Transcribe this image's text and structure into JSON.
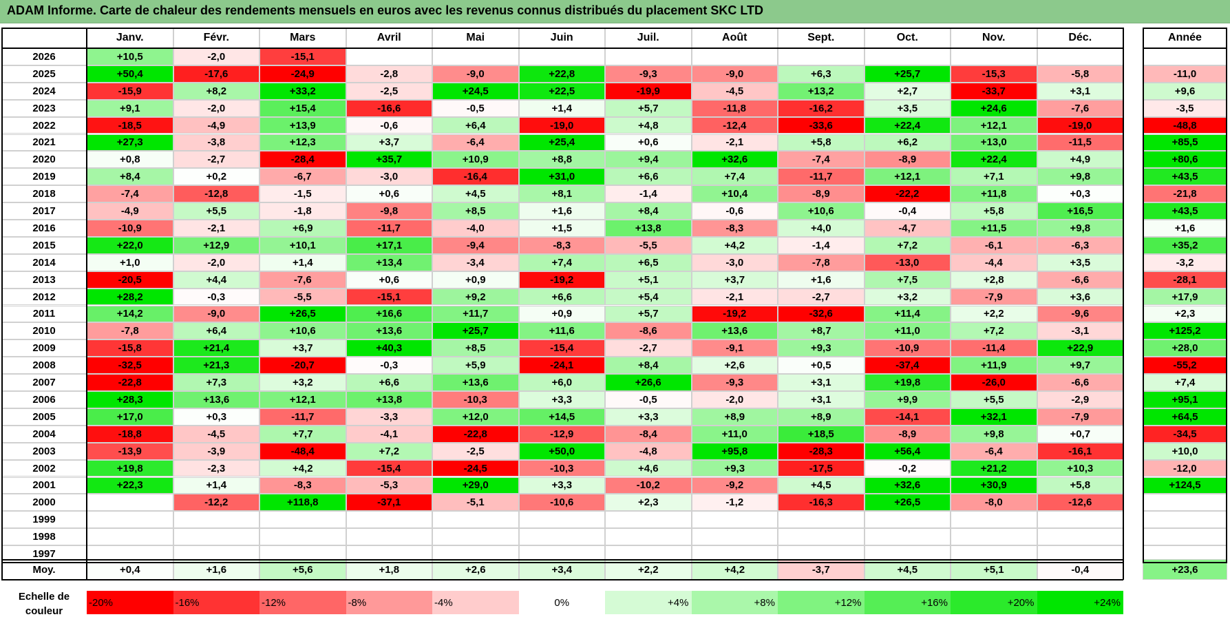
{
  "title": "ADAM Informe. Carte de chaleur des rendements mensuels en euros avec les revenus connus distribués du placement SKC LTD",
  "chart_data": {
    "type": "heatmap",
    "title": "ADAM Informe. Carte de chaleur des rendements mensuels en euros avec les revenus connus distribués du placement SKC LTD",
    "months": [
      "Janv.",
      "Févr.",
      "Mars",
      "Avril",
      "Mai",
      "Juin",
      "Juil.",
      "Août",
      "Sept.",
      "Oct.",
      "Nov.",
      "Déc."
    ],
    "annual_label": "Année",
    "rows": [
      {
        "year": "2026",
        "values": [
          "+10,5",
          "-2,0",
          "-15,1",
          "",
          "",
          "",
          "",
          "",
          "",
          "",
          "",
          ""
        ],
        "annual": ""
      },
      {
        "year": "2025",
        "values": [
          "+50,4",
          "-17,6",
          "-24,9",
          "-2,8",
          "-9,0",
          "+22,8",
          "-9,3",
          "-9,0",
          "+6,3",
          "+25,7",
          "-15,3",
          "-5,8"
        ],
        "annual": "-11,0"
      },
      {
        "year": "2024",
        "values": [
          "-15,9",
          "+8,2",
          "+33,2",
          "-2,5",
          "+24,5",
          "+22,5",
          "-19,9",
          "-4,5",
          "+13,2",
          "+2,7",
          "-33,7",
          "+3,1"
        ],
        "annual": "+9,6"
      },
      {
        "year": "2023",
        "values": [
          "+9,1",
          "-2,0",
          "+15,4",
          "-16,6",
          "-0,5",
          "+1,4",
          "+5,7",
          "-11,8",
          "-16,2",
          "+3,5",
          "+24,6",
          "-7,6"
        ],
        "annual": "-3,5"
      },
      {
        "year": "2022",
        "values": [
          "-18,5",
          "-4,9",
          "+13,9",
          "-0,6",
          "+6,4",
          "-19,0",
          "+4,8",
          "-12,4",
          "-33,6",
          "+22,4",
          "+12,1",
          "-19,0"
        ],
        "annual": "-48,8"
      },
      {
        "year": "2021",
        "values": [
          "+27,3",
          "-3,8",
          "+12,3",
          "+3,7",
          "-6,4",
          "+25,4",
          "+0,6",
          "-2,1",
          "+5,8",
          "+6,2",
          "+13,0",
          "-11,5"
        ],
        "annual": "+85,5"
      },
      {
        "year": "2020",
        "values": [
          "+0,8",
          "-2,7",
          "-28,4",
          "+35,7",
          "+10,9",
          "+8,8",
          "+9,4",
          "+32,6",
          "-7,4",
          "-8,9",
          "+22,4",
          "+4,9"
        ],
        "annual": "+80,6"
      },
      {
        "year": "2019",
        "values": [
          "+8,4",
          "+0,2",
          "-6,7",
          "-3,0",
          "-16,4",
          "+31,0",
          "+6,6",
          "+7,4",
          "-11,7",
          "+12,1",
          "+7,1",
          "+9,8"
        ],
        "annual": "+43,5"
      },
      {
        "year": "2018",
        "values": [
          "-7,4",
          "-12,8",
          "-1,5",
          "+0,6",
          "+4,5",
          "+8,1",
          "-1,4",
          "+10,4",
          "-8,9",
          "-22,2",
          "+11,8",
          "+0,3"
        ],
        "annual": "-21,8"
      },
      {
        "year": "2017",
        "values": [
          "-4,9",
          "+5,5",
          "-1,8",
          "-9,8",
          "+8,5",
          "+1,6",
          "+8,4",
          "-0,6",
          "+10,6",
          "-0,4",
          "+5,8",
          "+16,5"
        ],
        "annual": "+43,5"
      },
      {
        "year": "2016",
        "values": [
          "-10,9",
          "-2,1",
          "+6,9",
          "-11,7",
          "-4,0",
          "+1,5",
          "+13,8",
          "-8,3",
          "+4,0",
          "-4,7",
          "+11,5",
          "+9,8"
        ],
        "annual": "+1,6"
      },
      {
        "year": "2015",
        "values": [
          "+22,0",
          "+12,9",
          "+10,1",
          "+17,1",
          "-9,4",
          "-8,3",
          "-5,5",
          "+4,2",
          "-1,4",
          "+7,2",
          "-6,1",
          "-6,3"
        ],
        "annual": "+35,2"
      },
      {
        "year": "2014",
        "values": [
          "+1,0",
          "-2,0",
          "+1,4",
          "+13,4",
          "-3,4",
          "+7,4",
          "+6,5",
          "-3,0",
          "-7,8",
          "-13,0",
          "-4,4",
          "+3,5"
        ],
        "annual": "-3,2"
      },
      {
        "year": "2013",
        "values": [
          "-20,5",
          "+4,4",
          "-7,6",
          "+0,6",
          "+0,9",
          "-19,2",
          "+5,1",
          "+3,7",
          "+1,6",
          "+7,5",
          "+2,8",
          "-6,6"
        ],
        "annual": "-28,1"
      },
      {
        "year": "2012",
        "values": [
          "+28,2",
          "-0,3",
          "-5,5",
          "-15,1",
          "+9,2",
          "+6,6",
          "+5,4",
          "-2,1",
          "-2,7",
          "+3,2",
          "-7,9",
          "+3,6"
        ],
        "annual": "+17,9"
      },
      {
        "year": "2011",
        "values": [
          "+14,2",
          "-9,0",
          "+26,5",
          "+16,6",
          "+11,7",
          "+0,9",
          "+5,7",
          "-19,2",
          "-32,6",
          "+11,4",
          "+2,2",
          "-9,6"
        ],
        "annual": "+2,3"
      },
      {
        "year": "2010",
        "values": [
          "-7,8",
          "+6,4",
          "+10,6",
          "+13,6",
          "+25,7",
          "+11,6",
          "-8,6",
          "+13,6",
          "+8,7",
          "+11,0",
          "+7,2",
          "-3,1"
        ],
        "annual": "+125,2"
      },
      {
        "year": "2009",
        "values": [
          "-15,8",
          "+21,4",
          "+3,7",
          "+40,3",
          "+8,5",
          "-15,4",
          "-2,7",
          "-9,1",
          "+9,3",
          "-10,9",
          "-11,4",
          "+22,9"
        ],
        "annual": "+28,0"
      },
      {
        "year": "2008",
        "values": [
          "-32,5",
          "+21,3",
          "-20,7",
          "-0,3",
          "+5,9",
          "-24,1",
          "+8,4",
          "+2,6",
          "+0,5",
          "-37,4",
          "+11,9",
          "+9,7"
        ],
        "annual": "-55,2"
      },
      {
        "year": "2007",
        "values": [
          "-22,8",
          "+7,3",
          "+3,2",
          "+6,6",
          "+13,6",
          "+6,0",
          "+26,6",
          "-9,3",
          "+3,1",
          "+19,8",
          "-26,0",
          "-6,6"
        ],
        "annual": "+7,4"
      },
      {
        "year": "2006",
        "values": [
          "+28,3",
          "+13,6",
          "+12,1",
          "+13,8",
          "-10,3",
          "+3,3",
          "-0,5",
          "-2,0",
          "+3,1",
          "+9,9",
          "+5,5",
          "-2,9"
        ],
        "annual": "+95,1"
      },
      {
        "year": "2005",
        "values": [
          "+17,0",
          "+0,3",
          "-11,7",
          "-3,3",
          "+12,0",
          "+14,5",
          "+3,3",
          "+8,9",
          "+8,9",
          "-14,1",
          "+32,1",
          "-7,9"
        ],
        "annual": "+64,5"
      },
      {
        "year": "2004",
        "values": [
          "-18,8",
          "-4,5",
          "+7,7",
          "-4,1",
          "-22,8",
          "-12,9",
          "-8,4",
          "+11,0",
          "+18,5",
          "-8,9",
          "+9,8",
          "+0,7"
        ],
        "annual": "-34,5"
      },
      {
        "year": "2003",
        "values": [
          "-13,9",
          "-3,9",
          "-48,4",
          "+7,2",
          "-2,5",
          "+50,0",
          "-4,8",
          "+95,8",
          "-28,3",
          "+56,4",
          "-6,4",
          "-16,1"
        ],
        "annual": "+10,0"
      },
      {
        "year": "2002",
        "values": [
          "+19,8",
          "-2,3",
          "+4,2",
          "-15,4",
          "-24,5",
          "-10,3",
          "+4,6",
          "+9,3",
          "-17,5",
          "-0,2",
          "+21,2",
          "+10,3"
        ],
        "annual": "-12,0"
      },
      {
        "year": "2001",
        "values": [
          "+22,3",
          "+1,4",
          "-8,3",
          "-5,3",
          "+29,0",
          "+3,3",
          "-10,2",
          "-9,2",
          "+4,5",
          "+32,6",
          "+30,9",
          "+5,8"
        ],
        "annual": "+124,5"
      },
      {
        "year": "2000",
        "values": [
          "",
          "-12,2",
          "+118,8",
          "-37,1",
          "-5,1",
          "-10,6",
          "+2,3",
          "-1,2",
          "-16,3",
          "+26,5",
          "-8,0",
          "-12,6"
        ],
        "annual": ""
      },
      {
        "year": "1999",
        "values": [
          "",
          "",
          "",
          "",
          "",
          "",
          "",
          "",
          "",
          "",
          "",
          ""
        ],
        "annual": ""
      },
      {
        "year": "1998",
        "values": [
          "",
          "",
          "",
          "",
          "",
          "",
          "",
          "",
          "",
          "",
          "",
          ""
        ],
        "annual": ""
      },
      {
        "year": "1997",
        "values": [
          "",
          "",
          "",
          "",
          "",
          "",
          "",
          "",
          "",
          "",
          "",
          ""
        ],
        "annual": ""
      }
    ],
    "average": {
      "label": "Moy.",
      "values": [
        "+0,4",
        "+1,6",
        "+5,6",
        "+1,8",
        "+2,6",
        "+3,4",
        "+2,2",
        "+4,2",
        "-3,7",
        "+4,5",
        "+5,1",
        "-0,4"
      ],
      "annual": "+23,6"
    },
    "scale": {
      "label_line1": "Echelle de",
      "label_line2": "couleur",
      "steps": [
        "-20%",
        "-16%",
        "-12%",
        "-8%",
        "-4%",
        "0%",
        "+4%",
        "+8%",
        "+12%",
        "+16%",
        "+20%",
        "+24%"
      ],
      "step_values": [
        -20,
        -16,
        -12,
        -8,
        -4,
        0,
        4,
        8,
        12,
        16,
        20,
        24
      ]
    },
    "colors": {
      "neg_max": "#ff0000",
      "neutral": "#ffffff",
      "pos_max": "#00e600",
      "title_bg": "#8cc98c"
    }
  }
}
